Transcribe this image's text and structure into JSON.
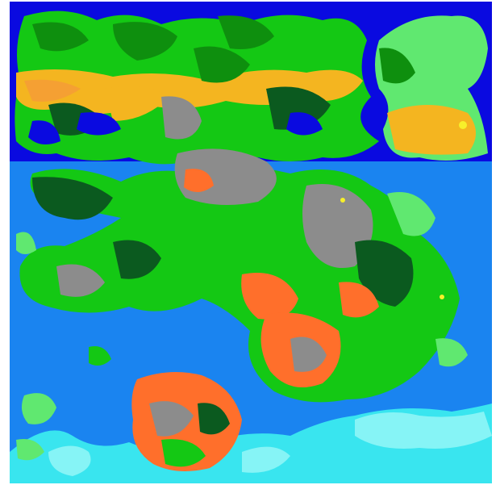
{
  "map": {
    "type": "procedural-terrain-map",
    "colors": {
      "frame": "#ffffff",
      "deep_ocean": "#0a0ae0",
      "ocean": "#1a84f0",
      "shallow": "#39e5ef",
      "ice": "#86f4f6",
      "light_grass": "#60e870",
      "grass": "#14c814",
      "forest": "#0e8f0e",
      "dark_forest": "#0b5a1f",
      "sand": "#f4b520",
      "dune": "#f5a033",
      "lava": "#ff6f2b",
      "rock": "#8c8c8c",
      "meadow": "#6fd46f",
      "gold": "#f7f02a"
    },
    "layers": [
      "deep-ocean",
      "ocean",
      "shallow-water",
      "ice-shelf",
      "landmass",
      "sand-belt",
      "forest",
      "rock",
      "lava",
      "gold-spots"
    ]
  }
}
